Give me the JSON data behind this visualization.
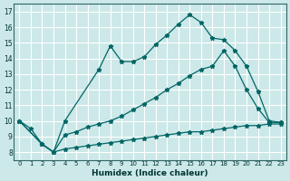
{
  "title": "",
  "xlabel": "Humidex (Indice chaleur)",
  "bg_color": "#cce8e8",
  "grid_color": "#ffffff",
  "line_color": "#006666",
  "xlim": [
    -0.5,
    23.5
  ],
  "ylim": [
    7.5,
    17.5
  ],
  "xticks": [
    0,
    1,
    2,
    3,
    4,
    5,
    6,
    7,
    8,
    9,
    10,
    11,
    12,
    13,
    14,
    15,
    16,
    17,
    18,
    19,
    20,
    21,
    22,
    23
  ],
  "yticks": [
    8,
    9,
    10,
    11,
    12,
    13,
    14,
    15,
    16,
    17
  ],
  "series": [
    {
      "x": [
        0,
        1,
        2,
        3,
        4,
        7,
        8,
        9,
        10,
        11,
        12,
        13,
        14,
        15,
        16,
        17,
        18,
        19,
        20,
        21,
        22,
        23
      ],
      "y": [
        10,
        9.5,
        8.5,
        8.0,
        10.0,
        13.3,
        14.8,
        13.8,
        13.8,
        14.1,
        14.9,
        15.5,
        16.2,
        16.8,
        16.3,
        15.3,
        15.2,
        14.5,
        13.5,
        11.9,
        10.0,
        9.9
      ]
    },
    {
      "x": [
        0,
        2,
        3,
        4,
        5,
        6,
        7,
        8,
        9,
        10,
        11,
        12,
        13,
        14,
        15,
        16,
        17,
        18,
        19,
        20,
        21,
        22,
        23
      ],
      "y": [
        10,
        8.5,
        8.0,
        9.1,
        9.3,
        9.6,
        9.8,
        10.0,
        10.3,
        10.7,
        11.1,
        11.5,
        12.0,
        12.4,
        12.9,
        13.3,
        13.5,
        14.5,
        13.5,
        12.0,
        10.8,
        9.9,
        9.9
      ]
    },
    {
      "x": [
        0,
        2,
        3,
        4,
        5,
        6,
        7,
        8,
        9,
        10,
        11,
        12,
        13,
        14,
        15,
        16,
        17,
        18,
        19,
        20,
        21,
        22,
        23
      ],
      "y": [
        10,
        8.5,
        8.0,
        8.2,
        8.3,
        8.4,
        8.5,
        8.6,
        8.7,
        8.8,
        8.9,
        9.0,
        9.1,
        9.2,
        9.3,
        9.3,
        9.4,
        9.5,
        9.6,
        9.7,
        9.7,
        9.8,
        9.8
      ]
    }
  ]
}
